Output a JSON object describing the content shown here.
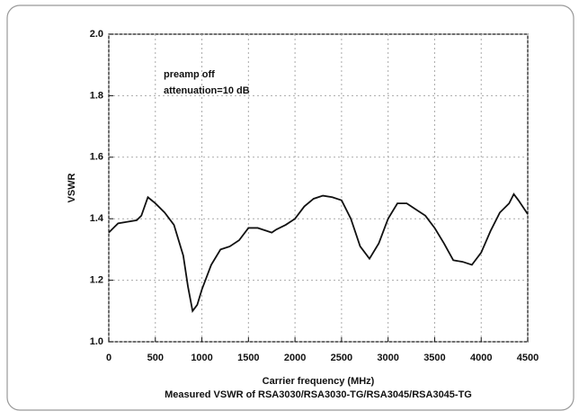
{
  "chart_data": {
    "type": "line",
    "title": "Measured VSWR of RSA3030/RSA3030-TG/RSA3045/RSA3045-TG",
    "xlabel": "Carrier frequency (MHz)",
    "ylabel": "VSWR",
    "annotations": [
      "preamp off",
      "attenuation=10 dB"
    ],
    "x": [
      0,
      100,
      200,
      300,
      350,
      420,
      500,
      600,
      700,
      800,
      850,
      900,
      950,
      1000,
      1100,
      1200,
      1300,
      1400,
      1500,
      1600,
      1700,
      1750,
      1800,
      1900,
      2000,
      2100,
      2200,
      2300,
      2400,
      2500,
      2600,
      2700,
      2800,
      2900,
      3000,
      3100,
      3200,
      3300,
      3400,
      3500,
      3600,
      3700,
      3800,
      3900,
      4000,
      4100,
      4200,
      4300,
      4350,
      4400,
      4500
    ],
    "series": [
      {
        "name": "VSWR",
        "color": "#111111",
        "values": [
          1.355,
          1.385,
          1.39,
          1.395,
          1.41,
          1.47,
          1.45,
          1.42,
          1.38,
          1.28,
          1.18,
          1.1,
          1.12,
          1.17,
          1.25,
          1.3,
          1.31,
          1.33,
          1.37,
          1.37,
          1.36,
          1.355,
          1.365,
          1.38,
          1.4,
          1.44,
          1.465,
          1.475,
          1.47,
          1.46,
          1.4,
          1.31,
          1.27,
          1.32,
          1.4,
          1.45,
          1.45,
          1.43,
          1.41,
          1.37,
          1.32,
          1.265,
          1.26,
          1.25,
          1.29,
          1.36,
          1.42,
          1.45,
          1.48,
          1.46,
          1.415
        ]
      }
    ],
    "xlim": [
      0,
      4500
    ],
    "xticks": [
      0,
      500,
      1000,
      1500,
      2000,
      2500,
      3000,
      3500,
      4000,
      4500
    ],
    "ylim": [
      1,
      2
    ],
    "yticks": [
      {
        "value": 1,
        "label": "1.0"
      },
      1.2,
      1.4,
      1.6,
      1.8,
      {
        "value": 2,
        "label": "2.0"
      }
    ],
    "grid": true
  }
}
